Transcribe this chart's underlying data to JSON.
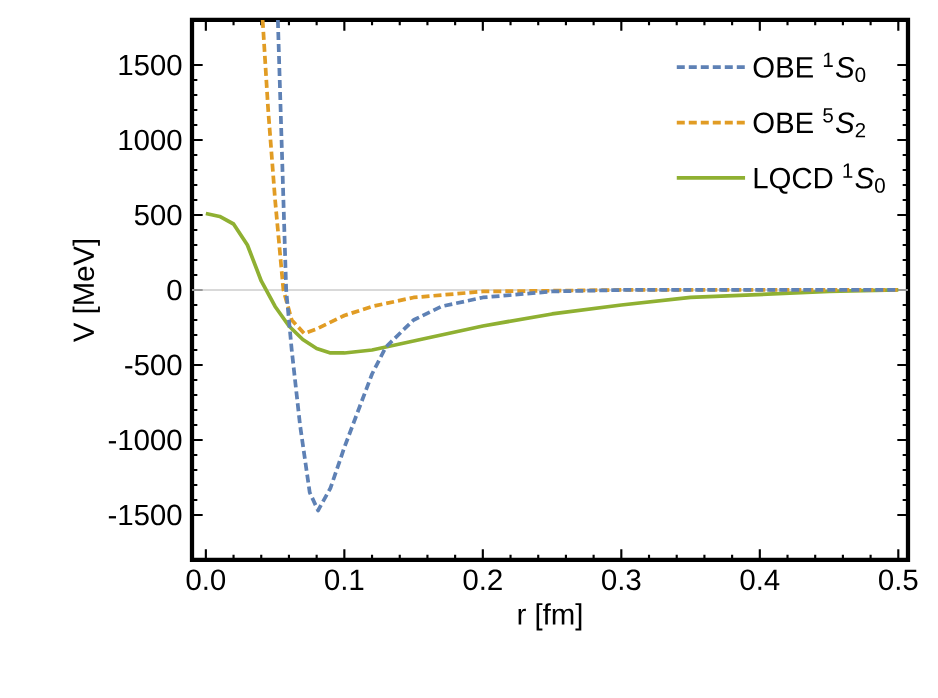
{
  "chart_data": {
    "type": "line",
    "xlabel": "r [fm]",
    "ylabel": "V [MeV]",
    "xlim": [
      -0.01,
      0.507
    ],
    "ylim": [
      -1800,
      1800
    ],
    "xticks": [
      {
        "value": 0,
        "label": "0.0"
      },
      0.1,
      0.2,
      0.3,
      0.4,
      0.5
    ],
    "yticks": [
      -1500,
      -1000,
      -500,
      0,
      500,
      1000,
      1500
    ],
    "grid": false,
    "legend": "top right",
    "marker": "none",
    "ref_lines": [
      {
        "axis": "y",
        "value": 0,
        "color": "#cccccc"
      }
    ],
    "series": [
      {
        "name": "OBE $^{1}$*S*$_{0}$",
        "color": "#5e81b5",
        "line_style": "dashed",
        "x": [
          0.052,
          0.055,
          0.058,
          0.062,
          0.068,
          0.075,
          0.081,
          0.09,
          0.1,
          0.111,
          0.12,
          0.13,
          0.15,
          0.17,
          0.2,
          0.25,
          0.3,
          0.4,
          0.5
        ],
        "values": [
          1800,
          900,
          0,
          -400,
          -900,
          -1350,
          -1470,
          -1320,
          -1050,
          -780,
          -560,
          -380,
          -200,
          -110,
          -50,
          -10,
          0,
          0,
          0
        ]
      },
      {
        "name": "OBE $^{5}$*S*$_{2}$",
        "color": "#e19c24",
        "line_style": "dashed",
        "x": [
          0.041,
          0.045,
          0.05,
          0.056,
          0.062,
          0.071,
          0.08,
          0.1,
          0.12,
          0.15,
          0.2,
          0.3,
          0.5
        ],
        "values": [
          1800,
          1200,
          600,
          0,
          -200,
          -290,
          -260,
          -170,
          -110,
          -50,
          -10,
          0,
          0
        ]
      },
      {
        "name": "LQCD $^{1}$*S*$_{0}$",
        "color": "#8fb032",
        "line_style": "solid",
        "x": [
          0,
          0.01,
          0.02,
          0.03,
          0.04,
          0.05,
          0.06,
          0.07,
          0.08,
          0.09,
          0.1,
          0.12,
          0.15,
          0.2,
          0.25,
          0.3,
          0.35,
          0.4,
          0.45,
          0.5
        ],
        "values": [
          510,
          490,
          440,
          300,
          60,
          -110,
          -240,
          -330,
          -390,
          -420,
          -420,
          -400,
          -340,
          -240,
          -160,
          -100,
          -50,
          -30,
          -10,
          0
        ]
      }
    ]
  }
}
